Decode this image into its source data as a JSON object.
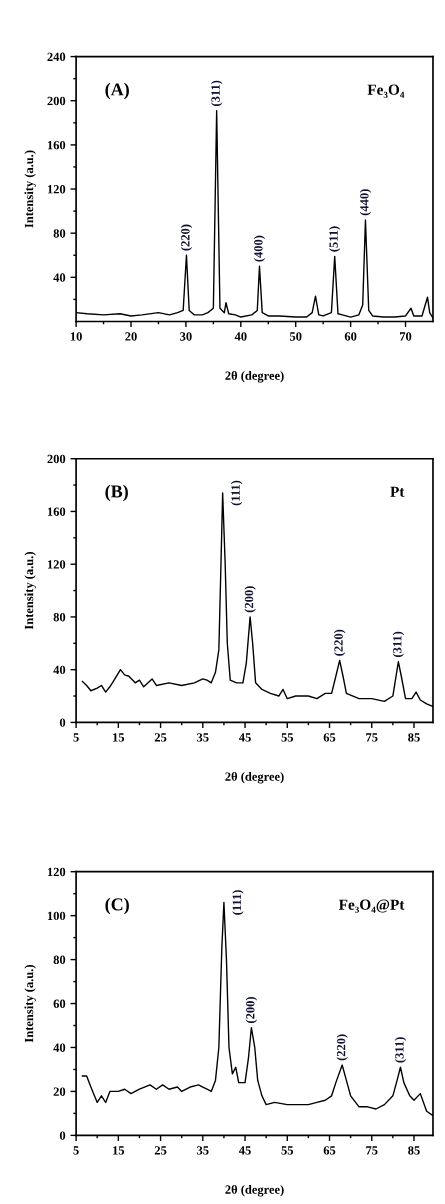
{
  "chart_data": [
    {
      "type": "line",
      "xlabel": "2θ (degree)",
      "ylabel": "Intensity (a.u.)",
      "grid": false,
      "legend": false,
      "xlim": [
        10,
        75
      ],
      "ylim": [
        0,
        240
      ],
      "xticks": [
        10,
        {
          "value": 15,
          "label": null
        },
        20,
        {
          "value": 25,
          "label": null
        },
        30,
        {
          "value": 35,
          "label": null
        },
        40,
        {
          "value": 45,
          "label": null
        },
        50,
        {
          "value": 55,
          "label": null
        },
        60,
        {
          "value": 65,
          "label": null
        },
        70
      ],
      "yticks": [
        {
          "value": 20,
          "label": null
        },
        40,
        {
          "value": 60,
          "label": null
        },
        80,
        {
          "value": 100,
          "label": null
        },
        120,
        {
          "value": 140,
          "label": null
        },
        160,
        {
          "value": 180,
          "label": null
        },
        200,
        {
          "value": 220,
          "label": null
        },
        240
      ],
      "annotations": [
        "(A)",
        "Fe₃O₄",
        {
          "text": "(220)",
          "x": 30.1,
          "y": 60
        },
        {
          "text": "(311)",
          "x": 35.6,
          "y": 191
        },
        {
          "text": "(400)",
          "x": 43.4,
          "y": 50
        },
        {
          "text": "(511)",
          "x": 57.1,
          "y": 59
        },
        {
          "text": "(440)",
          "x": 62.7,
          "y": 92
        }
      ],
      "series": [
        {
          "color": "#000000",
          "x": [
            10,
            12,
            15,
            18,
            20,
            22,
            25,
            27,
            28.5,
            29.5,
            30.1,
            30.6,
            31.5,
            33,
            34,
            35,
            35.6,
            36.2,
            37,
            37.3,
            37.8,
            39,
            40,
            42,
            43,
            43.4,
            43.9,
            45,
            47,
            50,
            52,
            53,
            53.6,
            54.2,
            55,
            56.5,
            57.1,
            57.7,
            58.5,
            60,
            61.5,
            62.2,
            62.7,
            63.3,
            64,
            66,
            68,
            70,
            71,
            71.5,
            73,
            74,
            74.4,
            75
          ],
          "values": [
            8,
            7,
            6,
            7,
            5,
            6,
            8,
            6,
            8,
            10,
            60,
            10,
            6,
            6,
            8,
            12,
            191,
            12,
            8,
            17,
            7,
            6,
            4,
            6,
            10,
            50,
            8,
            5,
            5,
            4,
            4,
            8,
            23,
            6,
            5,
            8,
            59,
            7,
            6,
            4,
            6,
            15,
            92,
            10,
            5,
            4,
            4,
            5,
            12,
            5,
            5,
            22,
            8,
            3
          ]
        }
      ]
    },
    {
      "type": "line",
      "xlabel": "2θ (degree)",
      "ylabel": "Intensity (a.u.)",
      "grid": false,
      "legend": false,
      "xlim": [
        5,
        89.5
      ],
      "ylim": [
        0,
        200
      ],
      "xticks": [
        5,
        {
          "value": 10,
          "label": null
        },
        15,
        {
          "value": 20,
          "label": null
        },
        25,
        {
          "value": 30,
          "label": null
        },
        35,
        {
          "value": 40,
          "label": null
        },
        45,
        {
          "value": 50,
          "label": null
        },
        55,
        {
          "value": 60,
          "label": null
        },
        65,
        {
          "value": 70,
          "label": null
        },
        75,
        {
          "value": 80,
          "label": null
        },
        85
      ],
      "yticks": [
        0,
        {
          "value": 20,
          "label": null
        },
        40,
        {
          "value": 60,
          "label": null
        },
        80,
        {
          "value": 100,
          "label": null
        },
        120,
        {
          "value": 140,
          "label": null
        },
        160,
        {
          "value": 180,
          "label": null
        },
        200
      ],
      "annotations": [
        "(B)",
        "Pt",
        {
          "text": "(111)",
          "x": 39.7,
          "y": 174
        },
        {
          "text": "(200)",
          "x": 46.2,
          "y": 80
        },
        {
          "text": "(220)",
          "x": 67.4,
          "y": 47
        },
        {
          "text": "(311)",
          "x": 81.3,
          "y": 46
        }
      ],
      "series": [
        {
          "color": "#000000",
          "x": [
            6.5,
            7.5,
            8.5,
            10,
            11,
            12,
            13,
            14,
            15.5,
            16.5,
            17.5,
            19,
            20,
            21,
            23,
            24,
            27,
            30,
            33,
            35,
            36,
            37,
            38,
            38.8,
            39.3,
            39.7,
            40.3,
            40.8,
            41.5,
            43,
            44.5,
            45.3,
            46.2,
            46.8,
            47.5,
            49,
            51,
            53,
            54,
            55,
            57,
            60,
            62,
            64,
            65.5,
            66.5,
            67.4,
            68.2,
            69,
            72,
            75,
            78,
            80,
            80.5,
            81.3,
            82,
            83,
            84.5,
            85.5,
            86.5,
            88,
            89.5
          ],
          "values": [
            31,
            28,
            24,
            26,
            28,
            23,
            27,
            32,
            40,
            36,
            35,
            30,
            32,
            27,
            33,
            28,
            30,
            28,
            30,
            33,
            32,
            30,
            38,
            55,
            120,
            174,
            120,
            60,
            32,
            30,
            30,
            45,
            80,
            60,
            30,
            25,
            22,
            20,
            25,
            18,
            20,
            20,
            18,
            22,
            22,
            35,
            47,
            35,
            22,
            18,
            18,
            16,
            20,
            30,
            46,
            35,
            18,
            18,
            23,
            17,
            14,
            12
          ]
        }
      ]
    },
    {
      "type": "line",
      "xlabel": "2θ (degree)",
      "ylabel": "Intensity (a.u.)",
      "grid": false,
      "legend": false,
      "xlim": [
        5,
        89.5
      ],
      "ylim": [
        0,
        120
      ],
      "xticks": [
        5,
        {
          "value": 10,
          "label": null
        },
        15,
        {
          "value": 20,
          "label": null
        },
        25,
        {
          "value": 30,
          "label": null
        },
        35,
        {
          "value": 40,
          "label": null
        },
        45,
        {
          "value": 50,
          "label": null
        },
        55,
        {
          "value": 60,
          "label": null
        },
        65,
        {
          "value": 70,
          "label": null
        },
        75,
        {
          "value": 80,
          "label": null
        },
        85
      ],
      "yticks": [
        0,
        {
          "value": 10,
          "label": null
        },
        20,
        {
          "value": 30,
          "label": null
        },
        40,
        {
          "value": 50,
          "label": null
        },
        60,
        {
          "value": 70,
          "label": null
        },
        80,
        {
          "value": 90,
          "label": null
        },
        100,
        {
          "value": 110,
          "label": null
        },
        120
      ],
      "annotations": [
        "(C)",
        "Fe₃O₄@Pt",
        {
          "text": "(111)",
          "x": 40,
          "y": 106
        },
        {
          "text": "(200)",
          "x": 46.5,
          "y": 49
        },
        {
          "text": "(220)",
          "x": 68,
          "y": 32
        },
        {
          "text": "(311)",
          "x": 81.8,
          "y": 31
        }
      ],
      "series": [
        {
          "color": "#000000",
          "x": [
            6.5,
            7.5,
            8.5,
            10,
            11,
            12,
            13,
            15,
            16.5,
            18,
            20,
            22.5,
            24,
            25.5,
            27,
            29,
            30,
            32,
            34,
            35,
            36,
            37,
            38,
            38.8,
            39.5,
            40,
            40.6,
            41.2,
            42,
            42.8,
            43.5,
            45,
            45.8,
            46.5,
            47.3,
            48,
            49,
            50,
            52,
            55,
            58,
            60,
            62,
            64,
            65.5,
            66.5,
            68,
            69,
            70,
            72,
            74,
            76,
            78,
            80,
            81,
            81.8,
            82.6,
            84,
            85,
            86.5,
            88,
            89.5
          ],
          "values": [
            27,
            27,
            22,
            15,
            18,
            15,
            20,
            20,
            21,
            19,
            21,
            23,
            21,
            23,
            21,
            22,
            20,
            22,
            23,
            22,
            21,
            20,
            25,
            40,
            85,
            106,
            80,
            40,
            28,
            31,
            24,
            24,
            35,
            49,
            40,
            25,
            18,
            14,
            15,
            14,
            14,
            14,
            15,
            16,
            18,
            24,
            32,
            25,
            18,
            13,
            13,
            12,
            14,
            18,
            25,
            31,
            24,
            18,
            16,
            19,
            11,
            9
          ]
        }
      ]
    }
  ]
}
